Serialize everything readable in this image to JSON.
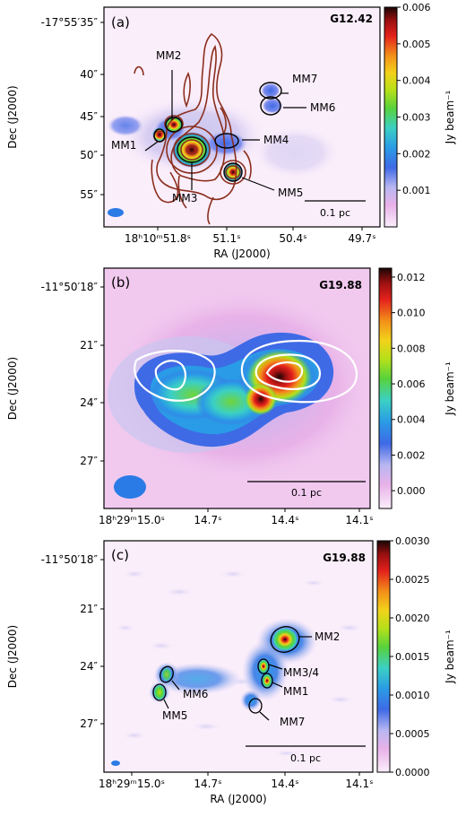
{
  "chart_data": [
    {
      "type": "heatmap",
      "panel_label": "(a)",
      "source_name": "G12.42",
      "xlabel": "RA (J2000)",
      "ylabel": "Dec (J2000)",
      "x_ticks": [
        "18ʰ10ᵐ51.8ˢ",
        "51.1ˢ",
        "50.4ˢ",
        "49.7ˢ"
      ],
      "y_ticks": [
        "-17°55′35″",
        "40″",
        "45″",
        "50″",
        "55″"
      ],
      "colorbar": {
        "label": "Jy beam⁻¹",
        "min": 0,
        "max": 0.006,
        "ticks": [
          "0.001",
          "0.002",
          "0.003",
          "0.004",
          "0.005",
          "0.006"
        ]
      },
      "scale_bar": "0.1 pc",
      "labels": [
        "MM1",
        "MM2",
        "MM3",
        "MM4",
        "MM5",
        "MM6",
        "MM7"
      ],
      "contours": "overlay"
    },
    {
      "type": "heatmap",
      "panel_label": "(b)",
      "source_name": "G19.88",
      "xlabel": "",
      "ylabel": "Dec (J2000)",
      "x_ticks": [
        "18ʰ29ᵐ15.0ˢ",
        "14.7ˢ",
        "14.4ˢ",
        "14.1ˢ"
      ],
      "y_ticks": [
        "-11°50′18″",
        "21″",
        "24″",
        "27″"
      ],
      "colorbar": {
        "label": "Jy beam⁻¹",
        "min": -0.001,
        "max": 0.0125,
        "ticks": [
          "0.000",
          "0.002",
          "0.004",
          "0.006",
          "0.008",
          "0.010",
          "0.012"
        ]
      },
      "scale_bar": "0.1 pc",
      "contours": "overlay"
    },
    {
      "type": "heatmap",
      "panel_label": "(c)",
      "source_name": "G19.88",
      "xlabel": "RA (J2000)",
      "ylabel": "Dec (J2000)",
      "x_ticks": [
        "18ʰ29ᵐ15.0ˢ",
        "14.7ˢ",
        "14.4ˢ",
        "14.1ˢ"
      ],
      "y_ticks": [
        "-11°50′18″",
        "21″",
        "24″",
        "27″"
      ],
      "colorbar": {
        "label": "Jy beam⁻¹",
        "min": 0,
        "max": 0.003,
        "ticks": [
          "0.0000",
          "0.0005",
          "0.0010",
          "0.0015",
          "0.0020",
          "0.0025",
          "0.0030"
        ]
      },
      "scale_bar": "0.1 pc",
      "labels": [
        "MM2",
        "MM3/4",
        "MM1",
        "MM7",
        "MM6",
        "MM5"
      ]
    }
  ]
}
